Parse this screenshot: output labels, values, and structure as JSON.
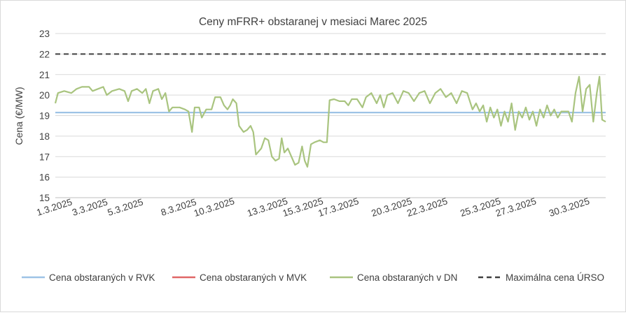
{
  "chart_data": {
    "type": "line",
    "title": "Ceny mFRR+ obstaranej v mesiaci Marec 2025",
    "ylabel": "Cena (€/MW)",
    "xlabel": "",
    "ylim": [
      15,
      23
    ],
    "yticks": [
      15,
      16,
      17,
      18,
      19,
      20,
      21,
      22,
      23
    ],
    "xlim": [
      0,
      31
    ],
    "xtick_labels": [
      {
        "label": "1.3.2025",
        "x": 0
      },
      {
        "label": "3.3.2025",
        "x": 2
      },
      {
        "label": "5.3.2025",
        "x": 4
      },
      {
        "label": "8.3.2025",
        "x": 7
      },
      {
        "label": "10.3.2025",
        "x": 9
      },
      {
        "label": "13.3.2025",
        "x": 12
      },
      {
        "label": "15.3.2025",
        "x": 14
      },
      {
        "label": "17.3.2025",
        "x": 16
      },
      {
        "label": "20.3.2025",
        "x": 19
      },
      {
        "label": "22.3.2025",
        "x": 21
      },
      {
        "label": "25.3.2025",
        "x": 24
      },
      {
        "label": "27.3.2025",
        "x": 26
      },
      {
        "label": "30.3.2025",
        "x": 29
      }
    ],
    "grid": "horizontal",
    "legend_position": "bottom",
    "series": [
      {
        "name": "Cena obstaraných v RVK",
        "color": "#9dc3e6",
        "style": "solid",
        "points": [
          [
            0,
            19.15
          ],
          [
            31,
            19.15
          ]
        ]
      },
      {
        "name": "Cena obstaraných v MVK",
        "color": "#e06666",
        "style": "solid",
        "points": []
      },
      {
        "name": "Cena obstaraných v DN",
        "color": "#a9c47f",
        "style": "solid",
        "points": [
          [
            0,
            19.6
          ],
          [
            0.15,
            20.1
          ],
          [
            0.5,
            20.2
          ],
          [
            0.9,
            20.1
          ],
          [
            1.2,
            20.3
          ],
          [
            1.5,
            20.4
          ],
          [
            1.9,
            20.4
          ],
          [
            2.1,
            20.2
          ],
          [
            2.4,
            20.3
          ],
          [
            2.7,
            20.4
          ],
          [
            2.9,
            20.0
          ],
          [
            3.2,
            20.2
          ],
          [
            3.6,
            20.3
          ],
          [
            3.9,
            20.2
          ],
          [
            4.1,
            19.7
          ],
          [
            4.3,
            20.2
          ],
          [
            4.6,
            20.3
          ],
          [
            4.9,
            20.1
          ],
          [
            5.1,
            20.3
          ],
          [
            5.3,
            19.6
          ],
          [
            5.5,
            20.2
          ],
          [
            5.8,
            20.3
          ],
          [
            6.0,
            19.8
          ],
          [
            6.2,
            20.1
          ],
          [
            6.4,
            19.2
          ],
          [
            6.6,
            19.4
          ],
          [
            7.0,
            19.4
          ],
          [
            7.3,
            19.3
          ],
          [
            7.5,
            19.2
          ],
          [
            7.7,
            18.2
          ],
          [
            7.85,
            19.4
          ],
          [
            8.1,
            19.4
          ],
          [
            8.25,
            18.9
          ],
          [
            8.5,
            19.3
          ],
          [
            8.8,
            19.3
          ],
          [
            9.0,
            19.9
          ],
          [
            9.3,
            19.9
          ],
          [
            9.5,
            19.5
          ],
          [
            9.7,
            19.3
          ],
          [
            9.85,
            19.5
          ],
          [
            10.0,
            19.8
          ],
          [
            10.2,
            19.6
          ],
          [
            10.35,
            18.5
          ],
          [
            10.6,
            18.2
          ],
          [
            10.8,
            18.3
          ],
          [
            11.0,
            18.5
          ],
          [
            11.15,
            18.2
          ],
          [
            11.3,
            17.1
          ],
          [
            11.6,
            17.4
          ],
          [
            11.8,
            17.9
          ],
          [
            12.0,
            17.8
          ],
          [
            12.2,
            17.0
          ],
          [
            12.4,
            16.8
          ],
          [
            12.6,
            16.9
          ],
          [
            12.75,
            17.9
          ],
          [
            12.9,
            17.2
          ],
          [
            13.1,
            17.4
          ],
          [
            13.3,
            17.0
          ],
          [
            13.5,
            16.6
          ],
          [
            13.7,
            16.7
          ],
          [
            13.9,
            17.5
          ],
          [
            14.05,
            16.8
          ],
          [
            14.2,
            16.5
          ],
          [
            14.4,
            17.6
          ],
          [
            14.6,
            17.7
          ],
          [
            14.9,
            17.8
          ],
          [
            15.1,
            17.7
          ],
          [
            15.3,
            17.7
          ],
          [
            15.45,
            19.75
          ],
          [
            15.7,
            19.8
          ],
          [
            16.0,
            19.7
          ],
          [
            16.3,
            19.7
          ],
          [
            16.5,
            19.5
          ],
          [
            16.7,
            19.8
          ],
          [
            17.0,
            19.8
          ],
          [
            17.3,
            19.4
          ],
          [
            17.5,
            19.9
          ],
          [
            17.8,
            20.1
          ],
          [
            18.1,
            19.6
          ],
          [
            18.3,
            20.0
          ],
          [
            18.5,
            19.4
          ],
          [
            18.7,
            20.0
          ],
          [
            19.0,
            20.1
          ],
          [
            19.3,
            19.6
          ],
          [
            19.6,
            20.2
          ],
          [
            19.9,
            20.1
          ],
          [
            20.2,
            19.7
          ],
          [
            20.5,
            20.1
          ],
          [
            20.8,
            20.2
          ],
          [
            21.1,
            19.6
          ],
          [
            21.4,
            20.1
          ],
          [
            21.7,
            20.3
          ],
          [
            22.0,
            19.9
          ],
          [
            22.3,
            20.1
          ],
          [
            22.6,
            19.6
          ],
          [
            22.9,
            20.2
          ],
          [
            23.2,
            20.1
          ],
          [
            23.5,
            19.3
          ],
          [
            23.7,
            19.6
          ],
          [
            23.9,
            19.2
          ],
          [
            24.1,
            19.5
          ],
          [
            24.3,
            18.7
          ],
          [
            24.5,
            19.4
          ],
          [
            24.7,
            18.9
          ],
          [
            24.9,
            19.3
          ],
          [
            25.1,
            18.5
          ],
          [
            25.3,
            19.2
          ],
          [
            25.5,
            18.7
          ],
          [
            25.7,
            19.6
          ],
          [
            25.9,
            18.3
          ],
          [
            26.1,
            19.2
          ],
          [
            26.3,
            18.9
          ],
          [
            26.5,
            19.4
          ],
          [
            26.7,
            18.8
          ],
          [
            26.9,
            19.2
          ],
          [
            27.1,
            18.5
          ],
          [
            27.3,
            19.3
          ],
          [
            27.5,
            18.9
          ],
          [
            27.7,
            19.5
          ],
          [
            27.9,
            19.0
          ],
          [
            28.1,
            19.3
          ],
          [
            28.3,
            18.9
          ],
          [
            28.5,
            19.2
          ],
          [
            28.7,
            19.2
          ],
          [
            28.9,
            19.2
          ],
          [
            29.1,
            18.7
          ],
          [
            29.3,
            20.1
          ],
          [
            29.5,
            20.9
          ],
          [
            29.7,
            19.2
          ],
          [
            29.9,
            20.3
          ],
          [
            30.1,
            20.5
          ],
          [
            30.3,
            18.7
          ],
          [
            30.5,
            20.1
          ],
          [
            30.65,
            20.9
          ],
          [
            30.8,
            18.8
          ],
          [
            31.0,
            18.7
          ]
        ]
      },
      {
        "name": "Maximálna cena ÚRSO",
        "color": "#404040",
        "style": "dashed",
        "points": [
          [
            0,
            22
          ],
          [
            31,
            22
          ]
        ]
      }
    ]
  }
}
